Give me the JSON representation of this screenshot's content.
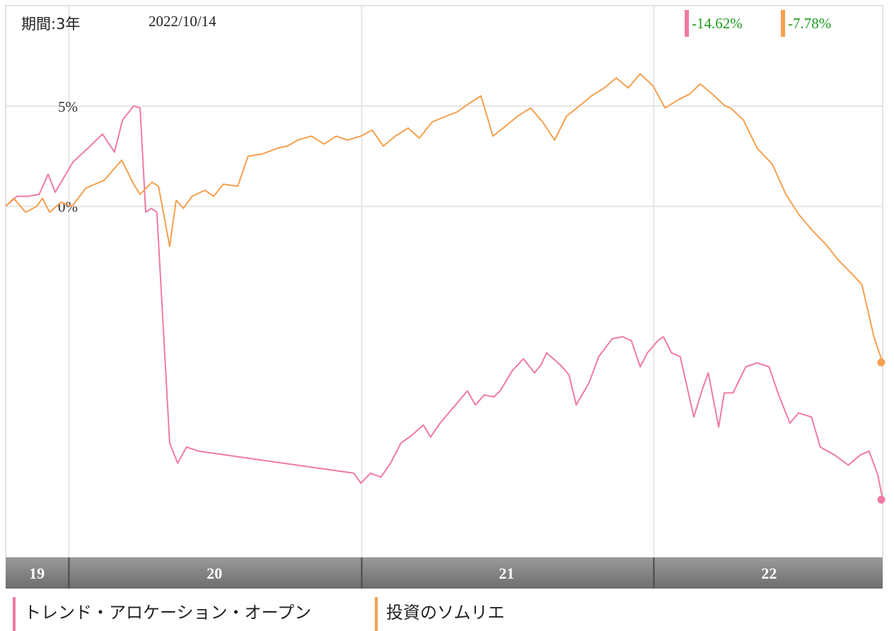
{
  "header": {
    "period_label": "期間:3年",
    "date": "2022/10/14"
  },
  "returns": [
    {
      "value": "-14.62%",
      "bar_color": "#f07aa6",
      "text_color": "#1e9a1e"
    },
    {
      "value": "-7.78%",
      "bar_color": "#f5a04e",
      "text_color": "#1e9a1e"
    }
  ],
  "legend": [
    {
      "label": "トレンド・アロケーション・オープン",
      "color": "#f07aa6"
    },
    {
      "label": "投資のソムリエ",
      "color": "#f5a04e"
    }
  ],
  "colors": {
    "series_1": "#f07aa6",
    "series_2": "#f5a04e",
    "grid": "#e6e6e6",
    "axis_band": "#8a8a8a",
    "axis_text": "#ffffff"
  },
  "chart_data": {
    "type": "line",
    "ylim": [
      -17.5,
      10
    ],
    "y_ticks": [
      {
        "value": 5,
        "label": "5%"
      },
      {
        "value": 0,
        "label": "0%"
      }
    ],
    "x_range": [
      "2019-10-14",
      "2022-10-14"
    ],
    "year_boundaries": [
      "2020-01-01",
      "2021-01-01",
      "2022-01-01"
    ],
    "year_labels": [
      {
        "label": "19",
        "center": "2019-11-22"
      },
      {
        "label": "20",
        "center": "2020-07-01"
      },
      {
        "label": "21",
        "center": "2021-07-01"
      },
      {
        "label": "22",
        "center": "2022-05-25"
      }
    ],
    "grid": true,
    "series": [
      {
        "name": "トレンド・アロケーション・オープン",
        "color": "#f07aa6",
        "end_value": -14.62,
        "points": [
          [
            "2019-10-14",
            0.0
          ],
          [
            "2019-10-28",
            0.5
          ],
          [
            "2019-11-11",
            0.5
          ],
          [
            "2019-11-25",
            0.6
          ],
          [
            "2019-12-06",
            1.6
          ],
          [
            "2019-12-15",
            0.7
          ],
          [
            "2020-01-06",
            2.2
          ],
          [
            "2020-01-25",
            2.9
          ],
          [
            "2020-02-12",
            3.6
          ],
          [
            "2020-02-27",
            2.7
          ],
          [
            "2020-03-08",
            4.3
          ],
          [
            "2020-03-22",
            5.0
          ],
          [
            "2020-03-30",
            4.9
          ],
          [
            "2020-04-06",
            -0.3
          ],
          [
            "2020-04-13",
            -0.1
          ],
          [
            "2020-04-20",
            -0.3
          ],
          [
            "2020-05-06",
            -11.8
          ],
          [
            "2020-05-16",
            -12.8
          ],
          [
            "2020-05-27",
            -12.0
          ],
          [
            "2020-06-11",
            -12.2
          ],
          [
            "2020-12-22",
            -13.3
          ],
          [
            "2020-12-31",
            -13.8
          ],
          [
            "2021-01-12",
            -13.3
          ],
          [
            "2021-01-25",
            -13.5
          ],
          [
            "2021-02-06",
            -12.8
          ],
          [
            "2021-02-19",
            -11.8
          ],
          [
            "2021-03-05",
            -11.4
          ],
          [
            "2021-03-19",
            -10.9
          ],
          [
            "2021-03-28",
            -11.5
          ],
          [
            "2021-04-09",
            -10.8
          ],
          [
            "2021-04-26",
            -10.0
          ],
          [
            "2021-05-13",
            -9.2
          ],
          [
            "2021-05-23",
            -9.9
          ],
          [
            "2021-06-03",
            -9.4
          ],
          [
            "2021-06-15",
            -9.5
          ],
          [
            "2021-06-23",
            -9.2
          ],
          [
            "2021-07-08",
            -8.2
          ],
          [
            "2021-07-22",
            -7.6
          ],
          [
            "2021-08-05",
            -8.3
          ],
          [
            "2021-08-13",
            -7.9
          ],
          [
            "2021-08-20",
            -7.3
          ],
          [
            "2021-09-06",
            -7.9
          ],
          [
            "2021-09-17",
            -8.4
          ],
          [
            "2021-09-26",
            -9.9
          ],
          [
            "2021-10-12",
            -8.8
          ],
          [
            "2021-10-24",
            -7.5
          ],
          [
            "2021-11-10",
            -6.6
          ],
          [
            "2021-11-23",
            -6.5
          ],
          [
            "2021-12-04",
            -6.7
          ],
          [
            "2021-12-15",
            -8.0
          ],
          [
            "2021-12-24",
            -7.3
          ],
          [
            "2022-01-06",
            -6.7
          ],
          [
            "2022-01-13",
            -6.5
          ],
          [
            "2022-01-23",
            -7.3
          ],
          [
            "2022-02-03",
            -7.5
          ],
          [
            "2022-02-20",
            -10.5
          ],
          [
            "2022-03-02",
            -9.2
          ],
          [
            "2022-03-10",
            -8.3
          ],
          [
            "2022-03-23",
            -11.0
          ],
          [
            "2022-03-30",
            -9.3
          ],
          [
            "2022-04-10",
            -9.3
          ],
          [
            "2022-04-26",
            -8.0
          ],
          [
            "2022-05-10",
            -7.8
          ],
          [
            "2022-05-25",
            -8.0
          ],
          [
            "2022-06-06",
            -9.4
          ],
          [
            "2022-06-20",
            -10.8
          ],
          [
            "2022-07-01",
            -10.3
          ],
          [
            "2022-07-17",
            -10.5
          ],
          [
            "2022-07-28",
            -12.0
          ],
          [
            "2022-08-15",
            -12.4
          ],
          [
            "2022-09-01",
            -12.9
          ],
          [
            "2022-09-16",
            -12.4
          ],
          [
            "2022-09-27",
            -12.2
          ],
          [
            "2022-10-08",
            -13.4
          ],
          [
            "2022-10-14",
            -14.62
          ]
        ]
      },
      {
        "name": "投資のソムリエ",
        "color": "#f5a04e",
        "end_value": -7.78,
        "points": [
          [
            "2019-10-14",
            0.0
          ],
          [
            "2019-10-24",
            0.4
          ],
          [
            "2019-11-08",
            -0.3
          ],
          [
            "2019-11-22",
            0.0
          ],
          [
            "2019-11-29",
            0.4
          ],
          [
            "2019-12-08",
            -0.3
          ],
          [
            "2019-12-22",
            0.2
          ],
          [
            "2020-01-05",
            0.0
          ],
          [
            "2020-01-22",
            0.9
          ],
          [
            "2020-02-14",
            1.3
          ],
          [
            "2020-03-07",
            2.3
          ],
          [
            "2020-03-22",
            1.1
          ],
          [
            "2020-03-30",
            0.6
          ],
          [
            "2020-04-14",
            1.2
          ],
          [
            "2020-04-22",
            1.0
          ],
          [
            "2020-05-06",
            -2.0
          ],
          [
            "2020-05-14",
            0.3
          ],
          [
            "2020-05-23",
            -0.1
          ],
          [
            "2020-06-03",
            0.5
          ],
          [
            "2020-06-19",
            0.8
          ],
          [
            "2020-06-30",
            0.5
          ],
          [
            "2020-07-12",
            1.1
          ],
          [
            "2020-07-30",
            1.0
          ],
          [
            "2020-08-12",
            2.5
          ],
          [
            "2020-08-29",
            2.6
          ],
          [
            "2020-09-18",
            2.9
          ],
          [
            "2020-09-30",
            3.0
          ],
          [
            "2020-10-13",
            3.3
          ],
          [
            "2020-10-30",
            3.5
          ],
          [
            "2020-11-15",
            3.1
          ],
          [
            "2020-11-30",
            3.5
          ],
          [
            "2020-12-14",
            3.3
          ],
          [
            "2020-12-31",
            3.5
          ],
          [
            "2021-01-14",
            3.8
          ],
          [
            "2021-01-28",
            3.0
          ],
          [
            "2021-02-12",
            3.5
          ],
          [
            "2021-02-28",
            3.9
          ],
          [
            "2021-03-14",
            3.4
          ],
          [
            "2021-03-30",
            4.2
          ],
          [
            "2021-04-17",
            4.5
          ],
          [
            "2021-04-30",
            4.7
          ],
          [
            "2021-05-18",
            5.2
          ],
          [
            "2021-05-30",
            5.5
          ],
          [
            "2021-06-14",
            3.5
          ],
          [
            "2021-06-30",
            4.0
          ],
          [
            "2021-07-15",
            4.5
          ],
          [
            "2021-07-31",
            4.9
          ],
          [
            "2021-08-15",
            4.2
          ],
          [
            "2021-08-30",
            3.3
          ],
          [
            "2021-09-14",
            4.5
          ],
          [
            "2021-09-30",
            5.0
          ],
          [
            "2021-10-15",
            5.5
          ],
          [
            "2021-10-31",
            5.9
          ],
          [
            "2021-11-15",
            6.4
          ],
          [
            "2021-11-30",
            5.9
          ],
          [
            "2021-12-15",
            6.6
          ],
          [
            "2021-12-31",
            6.0
          ],
          [
            "2022-01-15",
            4.9
          ],
          [
            "2022-01-31",
            5.3
          ],
          [
            "2022-02-15",
            5.6
          ],
          [
            "2022-02-28",
            6.1
          ],
          [
            "2022-03-15",
            5.6
          ],
          [
            "2022-03-31",
            5.0
          ],
          [
            "2022-04-07",
            4.9
          ],
          [
            "2022-04-23",
            4.3
          ],
          [
            "2022-05-10",
            2.9
          ],
          [
            "2022-05-29",
            2.1
          ],
          [
            "2022-06-15",
            0.6
          ],
          [
            "2022-07-01",
            -0.4
          ],
          [
            "2022-07-18",
            -1.2
          ],
          [
            "2022-08-04",
            -1.9
          ],
          [
            "2022-08-20",
            -2.7
          ],
          [
            "2022-09-04",
            -3.3
          ],
          [
            "2022-09-18",
            -3.9
          ],
          [
            "2022-10-03",
            -6.5
          ],
          [
            "2022-10-08",
            -7.1
          ],
          [
            "2022-10-14",
            -7.78
          ]
        ]
      }
    ]
  }
}
